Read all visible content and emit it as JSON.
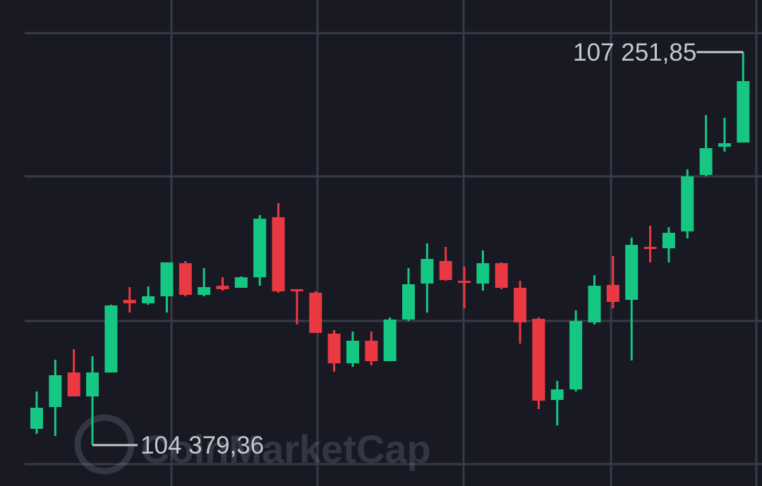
{
  "chart_data": {
    "type": "candlestick",
    "open": [
      104498,
      104657,
      104910,
      104735,
      104910,
      105441,
      105416,
      105467,
      105709,
      105477,
      105544,
      105529,
      105606,
      106045,
      105519,
      105493,
      105194,
      104977,
      105142,
      104993,
      105297,
      105560,
      105725,
      105580,
      105560,
      105709,
      105529,
      105302,
      104709,
      104786,
      105276,
      105550,
      105441,
      105828,
      105818,
      105941,
      106354,
      106560,
      106591
    ],
    "high": [
      104771,
      105003,
      105080,
      105029,
      105405,
      105534,
      105539,
      105715,
      105725,
      105673,
      105606,
      105612,
      106060,
      106148,
      105519,
      105503,
      105220,
      105209,
      105209,
      105312,
      105673,
      105854,
      105828,
      105684,
      105802,
      105715,
      105580,
      105312,
      104848,
      105364,
      105622,
      105761,
      105895,
      105983,
      105972,
      106395,
      106792,
      106772,
      107251.85
    ],
    "low": [
      104461,
      104446,
      104735,
      104379.36,
      104910,
      105348,
      105405,
      105348,
      105467,
      105467,
      105508,
      105529,
      105544,
      105493,
      105261,
      105199,
      104915,
      104951,
      104962,
      104993,
      105287,
      105348,
      105580,
      105379,
      105508,
      105519,
      105121,
      104642,
      104523,
      104771,
      105261,
      105379,
      104998,
      105715,
      105715,
      105890,
      106344,
      106524,
      106591
    ],
    "close": [
      104652,
      104890,
      104735,
      104910,
      105400,
      105416,
      105467,
      105715,
      105477,
      105534,
      105519,
      105606,
      106034,
      105503,
      105503,
      105199,
      104977,
      105142,
      104993,
      105297,
      105555,
      105740,
      105586,
      105570,
      105709,
      105529,
      105276,
      104704,
      104786,
      105287,
      105544,
      105426,
      105843,
      105818,
      105931,
      106344,
      106550,
      106586,
      107040
    ],
    "up_color": "#16c784",
    "down_color": "#ea3943",
    "ylim": [
      104080,
      107633
    ],
    "annotations": [
      {
        "label": "107 251,85",
        "value": 107251.85,
        "side": "left"
      },
      {
        "label": "104 379,36",
        "value": 104379.36,
        "side": "right"
      }
    ],
    "watermark": "CoinMarketCap"
  }
}
